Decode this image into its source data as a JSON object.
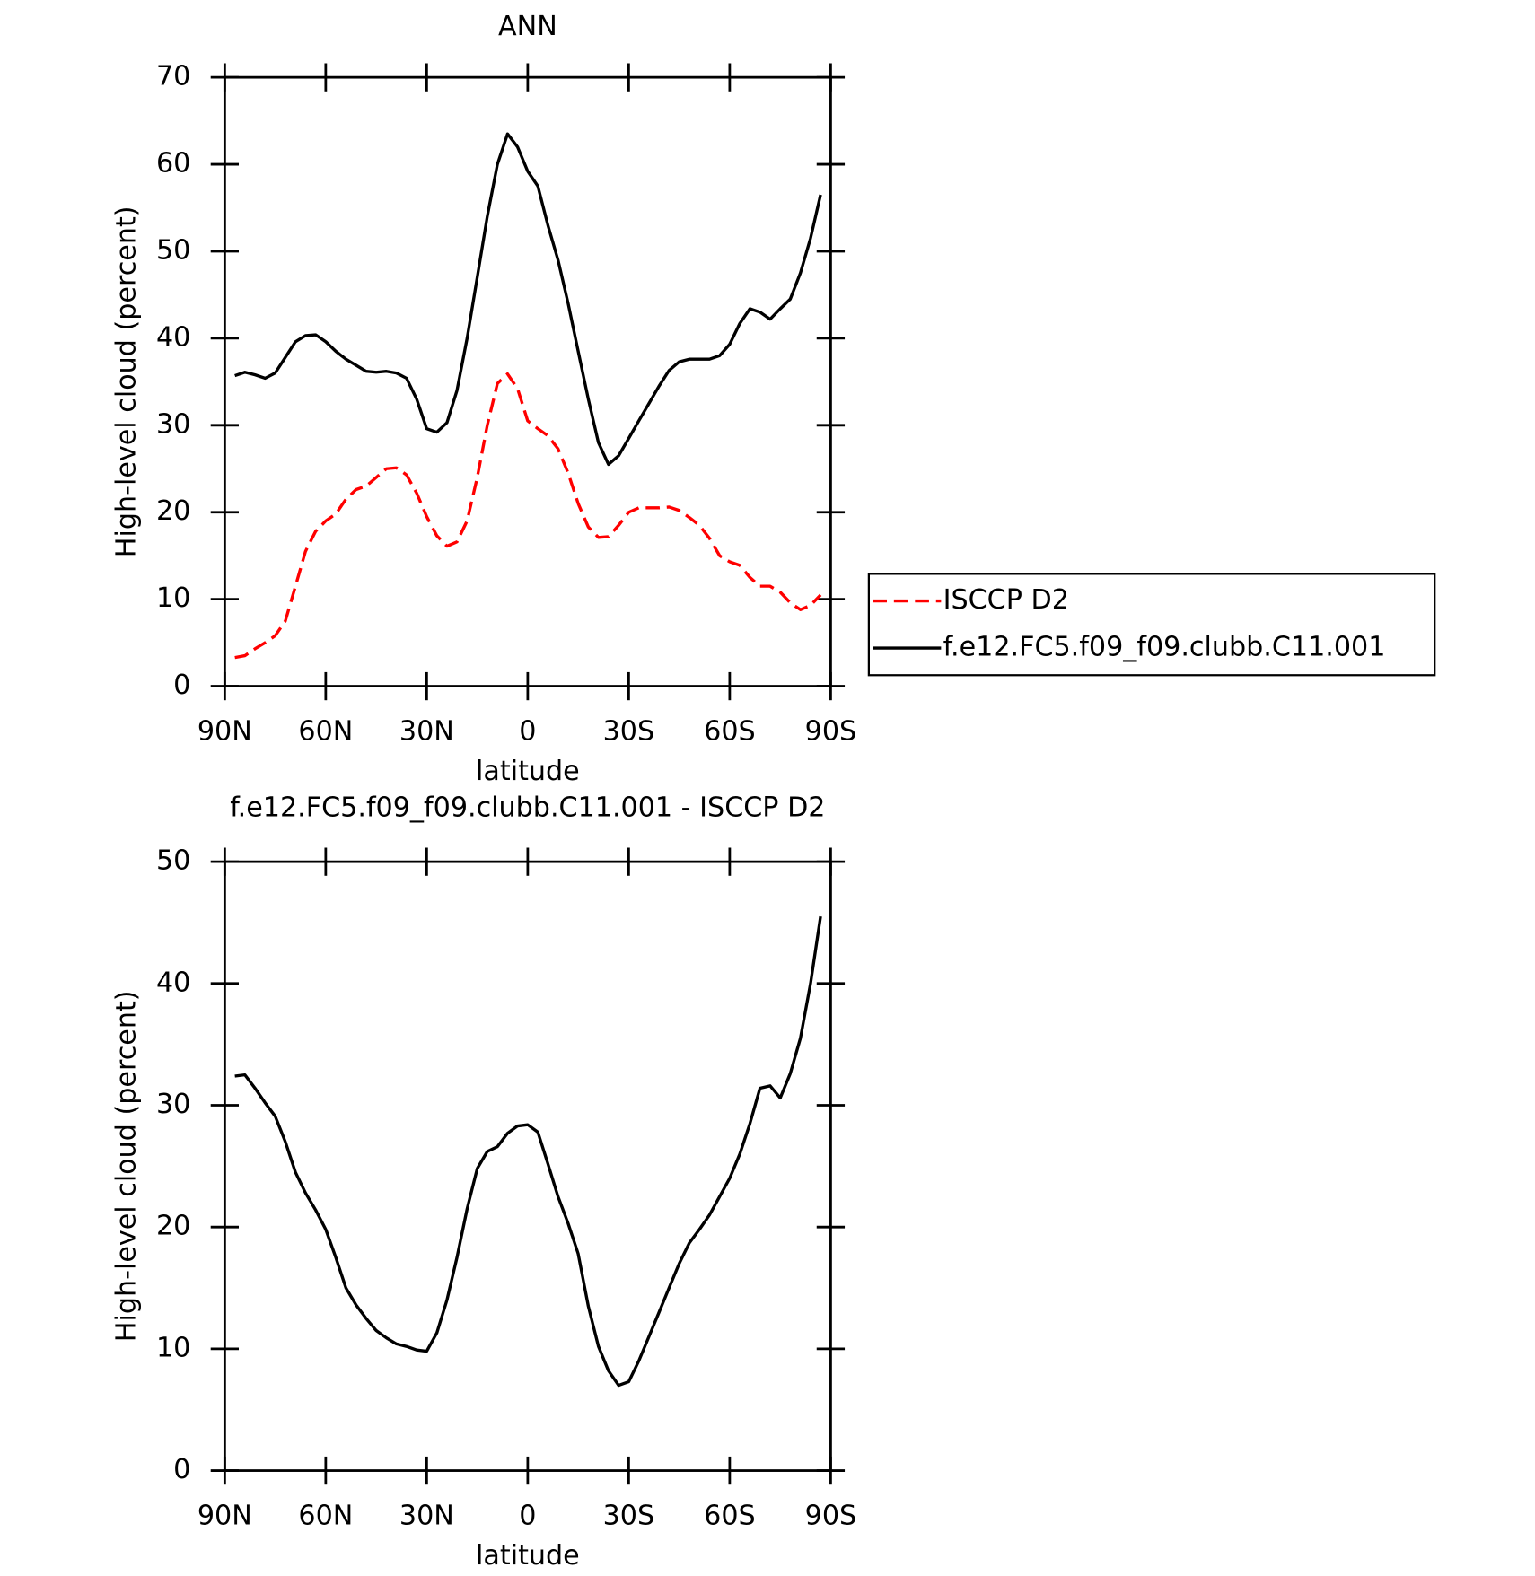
{
  "chart_data": [
    {
      "type": "line",
      "title": "ANN",
      "xlabel": "latitude",
      "ylabel": "High-level cloud (percent)",
      "x": [
        87,
        84,
        81,
        78,
        75,
        72,
        69,
        66,
        63,
        60,
        57,
        54,
        51,
        48,
        45,
        42,
        39,
        36,
        33,
        30,
        27,
        24,
        21,
        18,
        15,
        12,
        9,
        6,
        3,
        0,
        -3,
        -6,
        -9,
        -12,
        -15,
        -18,
        -21,
        -24,
        -27,
        -30,
        -33,
        -36,
        -39,
        -42,
        -45,
        -48,
        -51,
        -54,
        -57,
        -60,
        -63,
        -66,
        -69,
        -72,
        -75,
        -78,
        -81,
        -84,
        -87
      ],
      "xlim": [
        90,
        -90
      ],
      "xticks": [
        {
          "value": 90,
          "label": "90N"
        },
        {
          "value": 60,
          "label": "60N"
        },
        {
          "value": 30,
          "label": "30N"
        },
        0,
        {
          "value": -30,
          "label": "30S"
        },
        {
          "value": -60,
          "label": "60S"
        },
        {
          "value": -90,
          "label": "90S"
        }
      ],
      "ylim": [
        0,
        70
      ],
      "yticks": [
        0,
        10,
        20,
        30,
        40,
        50,
        60,
        70
      ],
      "legend": "right",
      "series": [
        {
          "name": "ISCCP D2",
          "color": "#ff0000",
          "dashed": true,
          "values": [
            3.3,
            3.5,
            4.3,
            5.0,
            5.8,
            7.5,
            11.5,
            15.5,
            17.8,
            19,
            19.8,
            21.5,
            22.6,
            23,
            24,
            25,
            25.1,
            24.3,
            22.2,
            19.5,
            17.3,
            16.1,
            16.6,
            19,
            24,
            30,
            34.8,
            35.9,
            34.2,
            30.5,
            29.6,
            28.8,
            27.3,
            24.5,
            21,
            18.3,
            17.1,
            17.2,
            18.5,
            20,
            20.5,
            20.5,
            20.5,
            20.6,
            20.2,
            19.4,
            18.5,
            17,
            15,
            14.3,
            13.9,
            12.5,
            11.5,
            11.5,
            10.8,
            9.6,
            8.8,
            9.3,
            10.5
          ]
        },
        {
          "name": "f.e12.FC5.f09_f09.clubb.C11.001",
          "color": "#000000",
          "dashed": false,
          "values": [
            35.7,
            36.1,
            35.8,
            35.4,
            36.0,
            37.8,
            39.6,
            40.3,
            40.4,
            39.6,
            38.5,
            37.6,
            36.9,
            36.2,
            36.1,
            36.2,
            36.0,
            35.4,
            33,
            29.6,
            29.2,
            30.3,
            34,
            40,
            47,
            54,
            60,
            63.5,
            62,
            59.2,
            57.5,
            53,
            49,
            44,
            38.5,
            33,
            28,
            25.5,
            26.5,
            28.5,
            30.5,
            32.5,
            34.5,
            36.3,
            37.3,
            37.6,
            37.6,
            37.6,
            38,
            39.3,
            41.7,
            43.4,
            43,
            42.2,
            43.4,
            44.5,
            47.5,
            51.5,
            56.5
          ]
        }
      ]
    },
    {
      "type": "line",
      "title": "f.e12.FC5.f09_f09.clubb.C11.001 - ISCCP D2",
      "xlabel": "latitude",
      "ylabel": "High-level cloud (percent)",
      "x": [
        87,
        84,
        81,
        78,
        75,
        72,
        69,
        66,
        63,
        60,
        57,
        54,
        51,
        48,
        45,
        42,
        39,
        36,
        33,
        30,
        27,
        24,
        21,
        18,
        15,
        12,
        9,
        6,
        3,
        0,
        -3,
        -6,
        -9,
        -12,
        -15,
        -18,
        -21,
        -24,
        -27,
        -30,
        -33,
        -36,
        -39,
        -42,
        -45,
        -48,
        -51,
        -54,
        -57,
        -60,
        -63,
        -66,
        -69,
        -72,
        -75,
        -78,
        -81,
        -84,
        -87
      ],
      "xlim": [
        90,
        -90
      ],
      "xticks": [
        {
          "value": 90,
          "label": "90N"
        },
        {
          "value": 60,
          "label": "60N"
        },
        {
          "value": 30,
          "label": "30N"
        },
        0,
        {
          "value": -30,
          "label": "30S"
        },
        {
          "value": -60,
          "label": "60S"
        },
        {
          "value": -90,
          "label": "90S"
        }
      ],
      "ylim": [
        0,
        50
      ],
      "yticks": [
        0,
        10,
        20,
        30,
        40,
        50
      ],
      "color": "#000000",
      "values": [
        32.4,
        32.5,
        31.4,
        30.2,
        29.1,
        27,
        24.5,
        22.8,
        21.4,
        19.8,
        17.5,
        15,
        13.6,
        12.5,
        11.5,
        10.9,
        10.4,
        10.2,
        9.9,
        9.8,
        11.3,
        14,
        17.5,
        21.5,
        24.8,
        26.2,
        26.6,
        27.7,
        28.3,
        28.4,
        27.8,
        25.2,
        22.5,
        20.3,
        17.8,
        13.5,
        10.2,
        8.2,
        7.0,
        7.3,
        9.0,
        11,
        13,
        15,
        17,
        18.7,
        19.8,
        21,
        22.5,
        24,
        26,
        28.5,
        31.4,
        31.6,
        30.6,
        32.6,
        35.5,
        40,
        45.5
      ]
    }
  ]
}
